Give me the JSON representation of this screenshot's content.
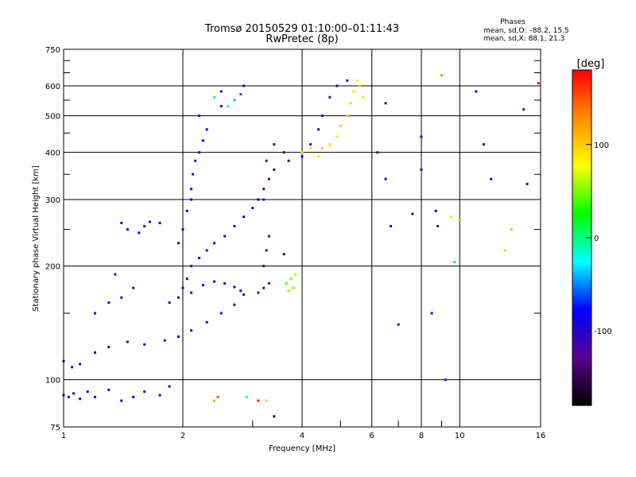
{
  "header": {
    "title_line1": "Tromsø 20150529 01:10:00–01:11:43",
    "title_line2": "RwPretec (8p)",
    "phases_title": "Phases",
    "phases_o": "mean, sd,O: –88.2, 15.5",
    "phases_x": "mean, sd,X: 88.1, 21.3"
  },
  "chart_data": {
    "type": "scatter",
    "xlabel": "Frequency [MHz]",
    "ylabel": "Stationary phase Virtual Height [km]",
    "x_scale": "log",
    "y_scale": "log",
    "xlim": [
      1,
      16
    ],
    "ylim": [
      75,
      750
    ],
    "grid": true,
    "x_ticks": [
      1,
      2,
      4,
      6,
      8,
      10,
      16
    ],
    "x_minor_ticks": [
      3,
      5,
      7,
      9
    ],
    "x_tick_labels": [
      "1",
      "2",
      "4",
      "6",
      "8",
      "10",
      "16"
    ],
    "y_ticks": [
      75,
      100,
      200,
      300,
      400,
      500,
      600,
      750
    ],
    "y_tick_labels": [
      "75",
      "100",
      "200",
      "300",
      "400",
      "500",
      "600",
      "750"
    ],
    "y_minor_ticks": [
      150,
      250,
      350,
      450,
      550,
      650,
      700
    ],
    "colorbar": {
      "label": "[deg]",
      "range": [
        -180,
        180
      ],
      "ticks": [
        -100,
        0,
        100
      ],
      "tick_labels": [
        "-100",
        "0",
        "100"
      ],
      "colors": [
        "#000000",
        "#5a008c",
        "#0000ff",
        "#00ffff",
        "#00ff00",
        "#ffff00",
        "#ff8c00",
        "#ff0000"
      ]
    },
    "series": [
      {
        "points": [
          [
            1.0,
            91,
            -100
          ],
          [
            1.03,
            90,
            -95
          ],
          [
            1.06,
            92,
            -90
          ],
          [
            1.1,
            89,
            -100
          ],
          [
            1.15,
            93,
            -95
          ],
          [
            1.2,
            90,
            -100
          ],
          [
            1.3,
            94,
            -90
          ],
          [
            1.4,
            88,
            -95
          ],
          [
            1.5,
            90,
            -85
          ],
          [
            1.6,
            93,
            -100
          ],
          [
            1.75,
            91,
            -95
          ],
          [
            1.85,
            96,
            -90
          ],
          [
            2.4,
            88,
            120
          ],
          [
            2.45,
            90,
            150
          ],
          [
            3.1,
            88,
            170
          ],
          [
            3.25,
            88,
            100
          ],
          [
            1.0,
            112,
            -100
          ],
          [
            1.05,
            108,
            -110
          ],
          [
            1.1,
            110,
            -100
          ],
          [
            1.2,
            118,
            -95
          ],
          [
            1.3,
            122,
            -100
          ],
          [
            1.45,
            126,
            -105
          ],
          [
            1.6,
            124,
            -100
          ],
          [
            1.8,
            127,
            -95
          ],
          [
            1.95,
            130,
            -90
          ],
          [
            2.1,
            135,
            -100
          ],
          [
            2.3,
            142,
            -95
          ],
          [
            2.5,
            150,
            -100
          ],
          [
            2.7,
            158,
            -95
          ],
          [
            2.85,
            168,
            -90
          ],
          [
            1.2,
            150,
            -100
          ],
          [
            1.3,
            160,
            -95
          ],
          [
            1.4,
            165,
            -100
          ],
          [
            1.5,
            175,
            -110
          ],
          [
            1.35,
            190,
            -100
          ],
          [
            1.85,
            160,
            -95
          ],
          [
            1.95,
            165,
            -100
          ],
          [
            2.0,
            175,
            -90
          ],
          [
            2.05,
            185,
            -95
          ],
          [
            2.1,
            200,
            -100
          ],
          [
            2.2,
            210,
            -105
          ],
          [
            2.3,
            220,
            -100
          ],
          [
            2.4,
            230,
            -95
          ],
          [
            2.55,
            240,
            -100
          ],
          [
            2.7,
            255,
            -95
          ],
          [
            2.85,
            270,
            -90
          ],
          [
            3.0,
            285,
            -85
          ],
          [
            3.2,
            300,
            -90
          ],
          [
            1.4,
            260,
            -100
          ],
          [
            1.45,
            250,
            -95
          ],
          [
            1.55,
            245,
            -100
          ],
          [
            1.6,
            255,
            -105
          ],
          [
            1.65,
            262,
            -100
          ],
          [
            1.75,
            260,
            -95
          ],
          [
            1.95,
            230,
            -100
          ],
          [
            2.0,
            250,
            -95
          ],
          [
            2.05,
            280,
            -90
          ],
          [
            2.1,
            300,
            -95
          ],
          [
            2.1,
            320,
            -100
          ],
          [
            2.12,
            350,
            -105
          ],
          [
            2.15,
            380,
            -100
          ],
          [
            2.2,
            400,
            -95
          ],
          [
            2.25,
            430,
            -100
          ],
          [
            2.3,
            460,
            -90
          ],
          [
            2.2,
            500,
            -100
          ],
          [
            2.4,
            560,
            -30
          ],
          [
            2.5,
            580,
            -100
          ],
          [
            2.6,
            530,
            -20
          ],
          [
            2.7,
            550,
            -40
          ],
          [
            2.8,
            570,
            -60
          ],
          [
            2.85,
            600,
            -90
          ],
          [
            2.1,
            170,
            -100
          ],
          [
            2.25,
            178,
            -95
          ],
          [
            2.4,
            182,
            -100
          ],
          [
            2.55,
            180,
            -90
          ],
          [
            2.7,
            176,
            -95
          ],
          [
            2.8,
            172,
            -100
          ],
          [
            3.1,
            170,
            -130
          ],
          [
            3.2,
            175,
            -135
          ],
          [
            3.3,
            180,
            -130
          ],
          [
            3.2,
            200,
            -140
          ],
          [
            3.25,
            220,
            -135
          ],
          [
            3.3,
            240,
            -130
          ],
          [
            3.1,
            300,
            -150
          ],
          [
            3.2,
            320,
            -140
          ],
          [
            3.3,
            340,
            -130
          ],
          [
            3.4,
            360,
            -140
          ],
          [
            3.25,
            380,
            -135
          ],
          [
            3.4,
            420,
            -130
          ],
          [
            3.6,
            400,
            -140
          ],
          [
            3.7,
            380,
            -135
          ],
          [
            3.6,
            215,
            -140
          ],
          [
            3.65,
            180,
            40
          ],
          [
            3.75,
            185,
            50
          ],
          [
            3.85,
            190,
            60
          ],
          [
            3.8,
            175,
            45
          ],
          [
            3.7,
            172,
            55
          ],
          [
            4.0,
            400,
            80
          ],
          [
            4.2,
            410,
            90
          ],
          [
            4.4,
            390,
            85
          ],
          [
            4.5,
            410,
            100
          ],
          [
            4.7,
            420,
            95
          ],
          [
            4.9,
            440,
            90
          ],
          [
            5.0,
            470,
            100
          ],
          [
            5.2,
            500,
            95
          ],
          [
            5.3,
            540,
            100
          ],
          [
            5.4,
            580,
            90
          ],
          [
            5.5,
            620,
            85
          ],
          [
            5.6,
            600,
            100
          ],
          [
            5.7,
            560,
            95
          ],
          [
            5.2,
            620,
            -120
          ],
          [
            4.9,
            600,
            -100
          ],
          [
            4.7,
            560,
            -110
          ],
          [
            4.5,
            500,
            -100
          ],
          [
            4.4,
            460,
            -95
          ],
          [
            4.2,
            420,
            -100
          ],
          [
            4.0,
            390,
            -90
          ],
          [
            6.2,
            400,
            -120
          ],
          [
            6.5,
            340,
            -100
          ],
          [
            6.7,
            255,
            -90
          ],
          [
            7.0,
            140,
            -100
          ],
          [
            6.5,
            540,
            -120
          ],
          [
            7.6,
            275,
            -100
          ],
          [
            8.0,
            360,
            -110
          ],
          [
            8.0,
            440,
            -100
          ],
          [
            8.5,
            150,
            -90
          ],
          [
            8.7,
            280,
            -100
          ],
          [
            8.8,
            255,
            -120
          ],
          [
            9.0,
            640,
            130
          ],
          [
            9.2,
            100,
            -70
          ],
          [
            9.5,
            270,
            60
          ],
          [
            9.7,
            205,
            30
          ],
          [
            10.0,
            265,
            50
          ],
          [
            11.0,
            580,
            -100
          ],
          [
            11.5,
            420,
            -110
          ],
          [
            12.0,
            340,
            -100
          ],
          [
            13.0,
            220,
            100
          ],
          [
            13.5,
            250,
            110
          ],
          [
            14.5,
            520,
            -130
          ],
          [
            14.8,
            330,
            -110
          ],
          [
            15.8,
            610,
            170
          ],
          [
            2.5,
            530,
            -110
          ],
          [
            2.9,
            90,
            -20
          ],
          [
            3.4,
            80,
            -150
          ]
        ]
      }
    ]
  }
}
